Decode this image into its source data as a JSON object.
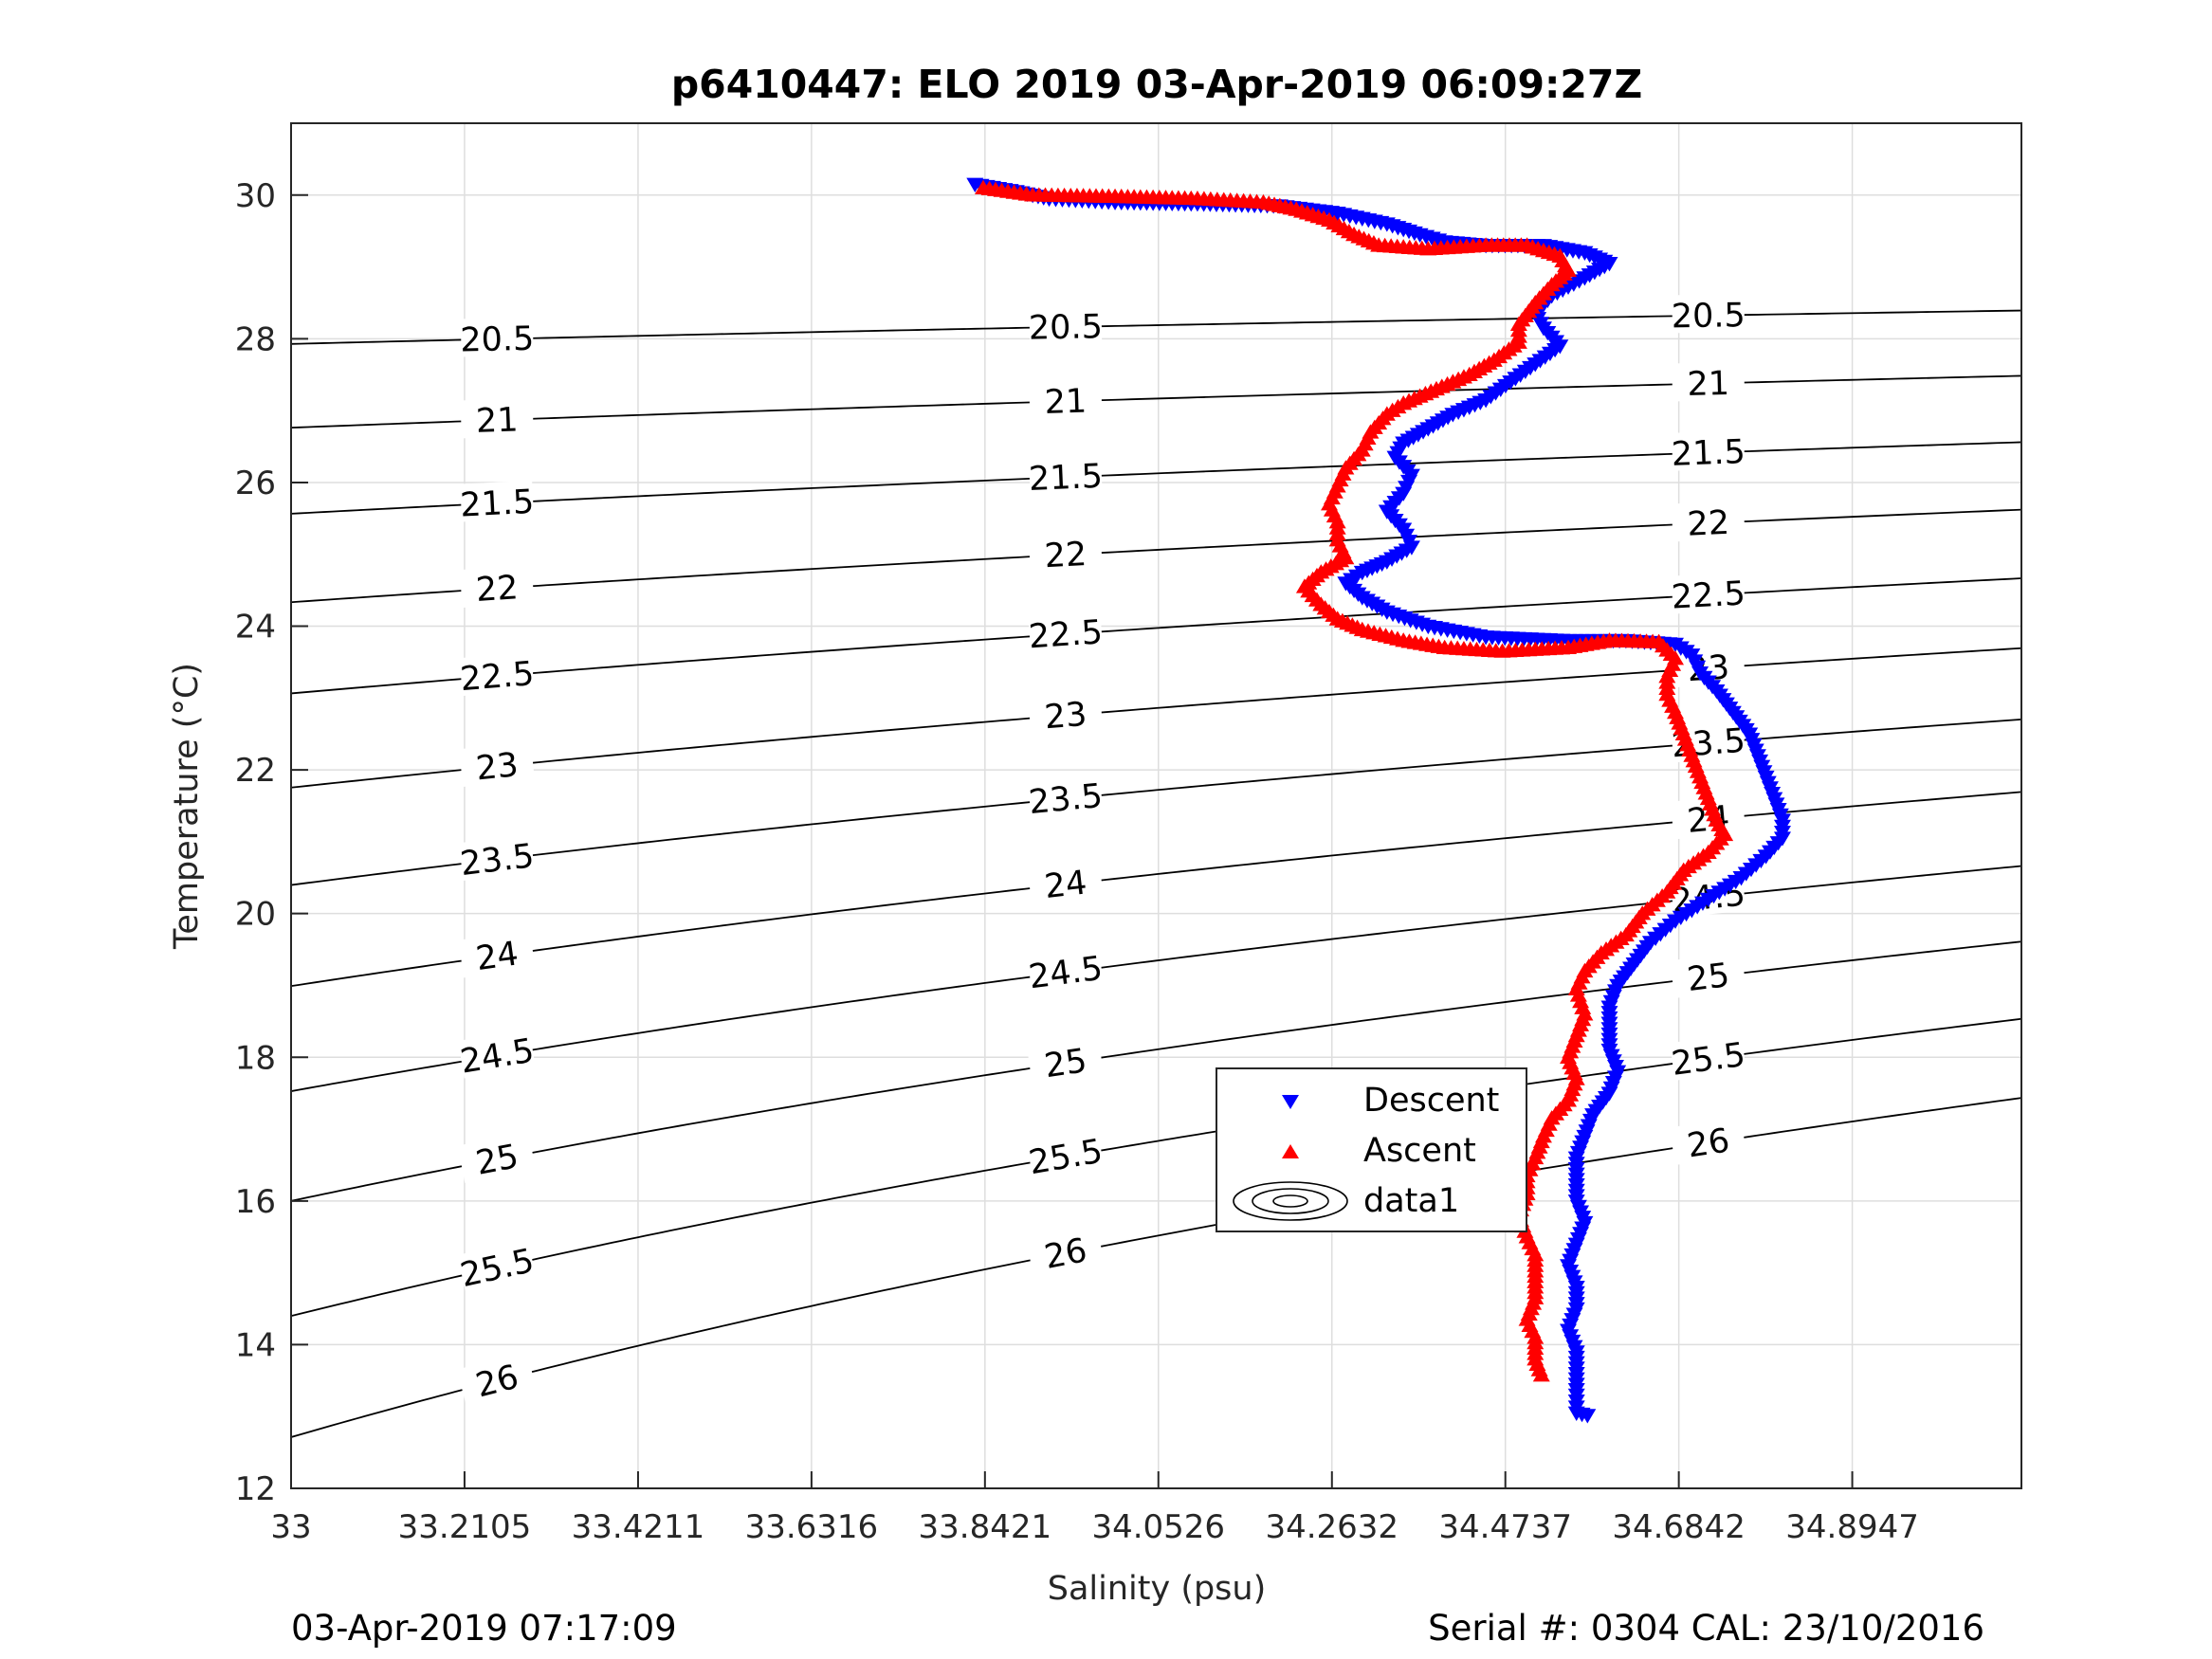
{
  "chart_data": {
    "type": "scatter",
    "title": "p6410447: ELO 2019 03-Apr-2019 06:09:27Z",
    "xlabel": "Salinity (psu)",
    "ylabel": "Temperature (°C)",
    "xlim": [
      33,
      35.1
    ],
    "ylim": [
      12,
      31
    ],
    "x_ticks": [
      33,
      33.2105,
      33.4211,
      33.6316,
      33.8421,
      34.0526,
      34.2632,
      34.4737,
      34.6842,
      34.8947
    ],
    "x_tick_labels": [
      "33",
      "33.2105",
      "33.4211",
      "33.6316",
      "33.8421",
      "34.0526",
      "34.2632",
      "34.4737",
      "34.6842",
      "34.8947"
    ],
    "y_ticks": [
      12,
      14,
      16,
      18,
      20,
      22,
      24,
      26,
      28,
      30
    ],
    "y_tick_labels": [
      "12",
      "14",
      "16",
      "18",
      "20",
      "22",
      "24",
      "26",
      "28",
      "30"
    ],
    "grid": true,
    "legend_position": "lower-center",
    "series": [
      {
        "name": "Descent",
        "marker": "triangle-down",
        "color": "#0000ff",
        "points": [
          [
            33.83,
            30.15
          ],
          [
            33.88,
            30.05
          ],
          [
            33.92,
            29.95
          ],
          [
            34.0,
            29.9
          ],
          [
            34.1,
            29.88
          ],
          [
            34.2,
            29.85
          ],
          [
            34.27,
            29.75
          ],
          [
            34.33,
            29.6
          ],
          [
            34.37,
            29.45
          ],
          [
            34.4,
            29.35
          ],
          [
            34.45,
            29.3
          ],
          [
            34.52,
            29.3
          ],
          [
            34.57,
            29.2
          ],
          [
            34.6,
            29.05
          ],
          [
            34.57,
            28.85
          ],
          [
            34.53,
            28.6
          ],
          [
            34.51,
            28.35
          ],
          [
            34.52,
            28.15
          ],
          [
            34.54,
            27.9
          ],
          [
            34.51,
            27.65
          ],
          [
            34.48,
            27.4
          ],
          [
            34.45,
            27.15
          ],
          [
            34.41,
            26.95
          ],
          [
            34.38,
            26.75
          ],
          [
            34.35,
            26.55
          ],
          [
            34.34,
            26.35
          ],
          [
            34.36,
            26.1
          ],
          [
            34.35,
            25.85
          ],
          [
            34.33,
            25.6
          ],
          [
            34.35,
            25.35
          ],
          [
            34.36,
            25.1
          ],
          [
            34.33,
            24.9
          ],
          [
            34.3,
            24.75
          ],
          [
            34.28,
            24.6
          ],
          [
            34.3,
            24.4
          ],
          [
            34.33,
            24.2
          ],
          [
            34.38,
            24.0
          ],
          [
            34.45,
            23.85
          ],
          [
            34.55,
            23.8
          ],
          [
            34.62,
            23.8
          ],
          [
            34.68,
            23.75
          ],
          [
            34.7,
            23.6
          ],
          [
            34.71,
            23.35
          ],
          [
            34.73,
            23.1
          ],
          [
            34.75,
            22.8
          ],
          [
            34.77,
            22.5
          ],
          [
            34.78,
            22.2
          ],
          [
            34.79,
            21.9
          ],
          [
            34.8,
            21.6
          ],
          [
            34.81,
            21.3
          ],
          [
            34.81,
            21.05
          ],
          [
            34.79,
            20.8
          ],
          [
            34.76,
            20.5
          ],
          [
            34.72,
            20.2
          ],
          [
            34.68,
            19.9
          ],
          [
            34.65,
            19.6
          ],
          [
            34.63,
            19.3
          ],
          [
            34.61,
            19.0
          ],
          [
            34.6,
            18.7
          ],
          [
            34.6,
            18.4
          ],
          [
            34.6,
            18.1
          ],
          [
            34.61,
            17.8
          ],
          [
            34.6,
            17.5
          ],
          [
            34.58,
            17.2
          ],
          [
            34.57,
            16.9
          ],
          [
            34.56,
            16.6
          ],
          [
            34.56,
            16.3
          ],
          [
            34.56,
            16.0
          ],
          [
            34.57,
            15.7
          ],
          [
            34.56,
            15.4
          ],
          [
            34.55,
            15.1
          ],
          [
            34.56,
            14.8
          ],
          [
            34.56,
            14.5
          ],
          [
            34.55,
            14.2
          ],
          [
            34.56,
            13.9
          ],
          [
            34.56,
            13.6
          ],
          [
            34.56,
            13.3
          ],
          [
            34.56,
            13.05
          ],
          [
            34.58,
            13.0
          ]
        ]
      },
      {
        "name": "Ascent",
        "marker": "triangle-up",
        "color": "#ff0000",
        "points": [
          [
            33.84,
            30.1
          ],
          [
            33.9,
            30.0
          ],
          [
            34.0,
            29.98
          ],
          [
            34.1,
            29.95
          ],
          [
            34.18,
            29.9
          ],
          [
            34.22,
            29.8
          ],
          [
            34.26,
            29.65
          ],
          [
            34.29,
            29.45
          ],
          [
            34.32,
            29.3
          ],
          [
            34.38,
            29.25
          ],
          [
            34.45,
            29.3
          ],
          [
            34.5,
            29.3
          ],
          [
            34.54,
            29.15
          ],
          [
            34.55,
            28.95
          ],
          [
            34.53,
            28.75
          ],
          [
            34.51,
            28.5
          ],
          [
            34.49,
            28.2
          ],
          [
            34.49,
            27.95
          ],
          [
            34.46,
            27.7
          ],
          [
            34.43,
            27.5
          ],
          [
            34.39,
            27.3
          ],
          [
            34.35,
            27.1
          ],
          [
            34.33,
            26.95
          ],
          [
            34.31,
            26.7
          ],
          [
            34.3,
            26.45
          ],
          [
            34.28,
            26.2
          ],
          [
            34.27,
            25.95
          ],
          [
            34.26,
            25.7
          ],
          [
            34.27,
            25.45
          ],
          [
            34.27,
            25.2
          ],
          [
            34.28,
            24.95
          ],
          [
            34.25,
            24.75
          ],
          [
            34.23,
            24.55
          ],
          [
            34.25,
            24.3
          ],
          [
            34.27,
            24.1
          ],
          [
            34.3,
            23.95
          ],
          [
            34.35,
            23.8
          ],
          [
            34.4,
            23.7
          ],
          [
            34.47,
            23.65
          ],
          [
            34.55,
            23.7
          ],
          [
            34.6,
            23.8
          ],
          [
            34.66,
            23.78
          ],
          [
            34.68,
            23.55
          ],
          [
            34.67,
            23.3
          ],
          [
            34.67,
            23.05
          ],
          [
            34.68,
            22.8
          ],
          [
            34.69,
            22.5
          ],
          [
            34.7,
            22.2
          ],
          [
            34.71,
            21.9
          ],
          [
            34.72,
            21.6
          ],
          [
            34.73,
            21.3
          ],
          [
            34.74,
            21.1
          ],
          [
            34.72,
            20.85
          ],
          [
            34.69,
            20.6
          ],
          [
            34.67,
            20.3
          ],
          [
            34.64,
            20.0
          ],
          [
            34.62,
            19.7
          ],
          [
            34.59,
            19.45
          ],
          [
            34.57,
            19.2
          ],
          [
            34.56,
            18.95
          ],
          [
            34.57,
            18.6
          ],
          [
            34.56,
            18.3
          ],
          [
            34.55,
            18.0
          ],
          [
            34.56,
            17.7
          ],
          [
            34.55,
            17.4
          ],
          [
            34.53,
            17.15
          ],
          [
            34.52,
            16.9
          ],
          [
            34.51,
            16.6
          ],
          [
            34.5,
            16.35
          ],
          [
            34.5,
            16.1
          ],
          [
            34.49,
            15.8
          ],
          [
            34.5,
            15.5
          ],
          [
            34.51,
            15.25
          ],
          [
            34.51,
            14.95
          ],
          [
            34.51,
            14.65
          ],
          [
            34.5,
            14.35
          ],
          [
            34.51,
            14.1
          ],
          [
            34.51,
            13.8
          ],
          [
            34.52,
            13.5
          ]
        ]
      }
    ],
    "contours": {
      "name": "data1",
      "color": "#000000",
      "levels": [
        20.5,
        21,
        21.5,
        22,
        22.5,
        23,
        23.5,
        24,
        24.5,
        25,
        25.5,
        26
      ]
    }
  },
  "legend": {
    "items": [
      {
        "label": "Descent",
        "color": "#0000ff"
      },
      {
        "label": "Ascent",
        "color": "#ff0000"
      },
      {
        "label": "data1",
        "color": "#000000"
      }
    ]
  },
  "footer": {
    "left": "03-Apr-2019 07:17:09",
    "right": "Serial #: 0304  CAL: 23/10/2016"
  }
}
